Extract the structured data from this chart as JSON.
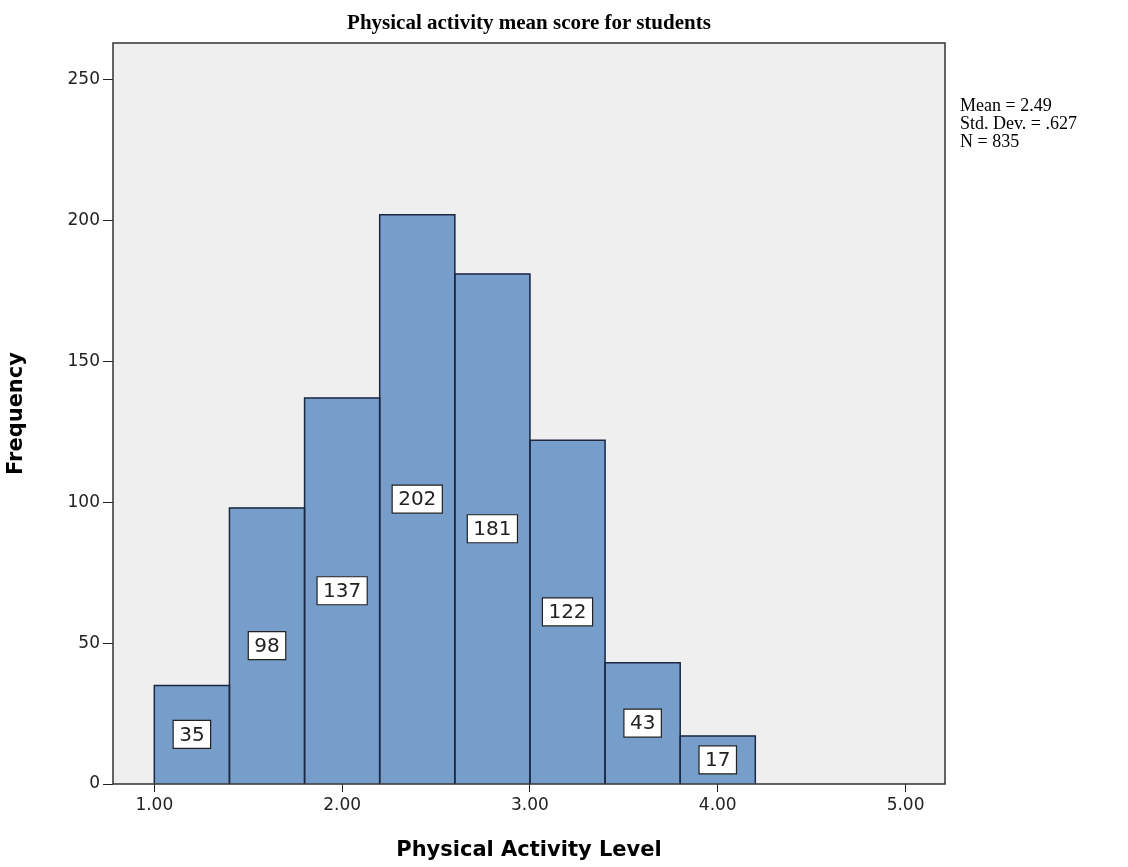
{
  "chart_data": {
    "type": "histogram",
    "title": "Physical activity mean score for students",
    "xlabel": "Physical Activity Level",
    "ylabel": "Frequency",
    "bins": [
      1.0,
      1.4,
      1.8,
      2.2,
      2.6,
      3.0,
      3.4,
      3.8,
      4.2
    ],
    "values": [
      35,
      98,
      137,
      202,
      181,
      122,
      43,
      17
    ],
    "color": "#779ecb",
    "xlim": [
      0.78,
      5.21
    ],
    "xticks": [
      {
        "value": 1,
        "label": "1.00"
      },
      {
        "value": 2,
        "label": "2.00"
      },
      {
        "value": 3,
        "label": "3.00"
      },
      {
        "value": 4,
        "label": "4.00"
      },
      {
        "value": 5,
        "label": "5.00"
      }
    ],
    "ylim": [
      0,
      263
    ],
    "yticks": [
      0,
      50,
      100,
      150,
      200,
      250
    ],
    "data_labels": true,
    "annotations": [
      "Mean = 2.49",
      "Std. Dev. = .627",
      "N = 835"
    ]
  }
}
